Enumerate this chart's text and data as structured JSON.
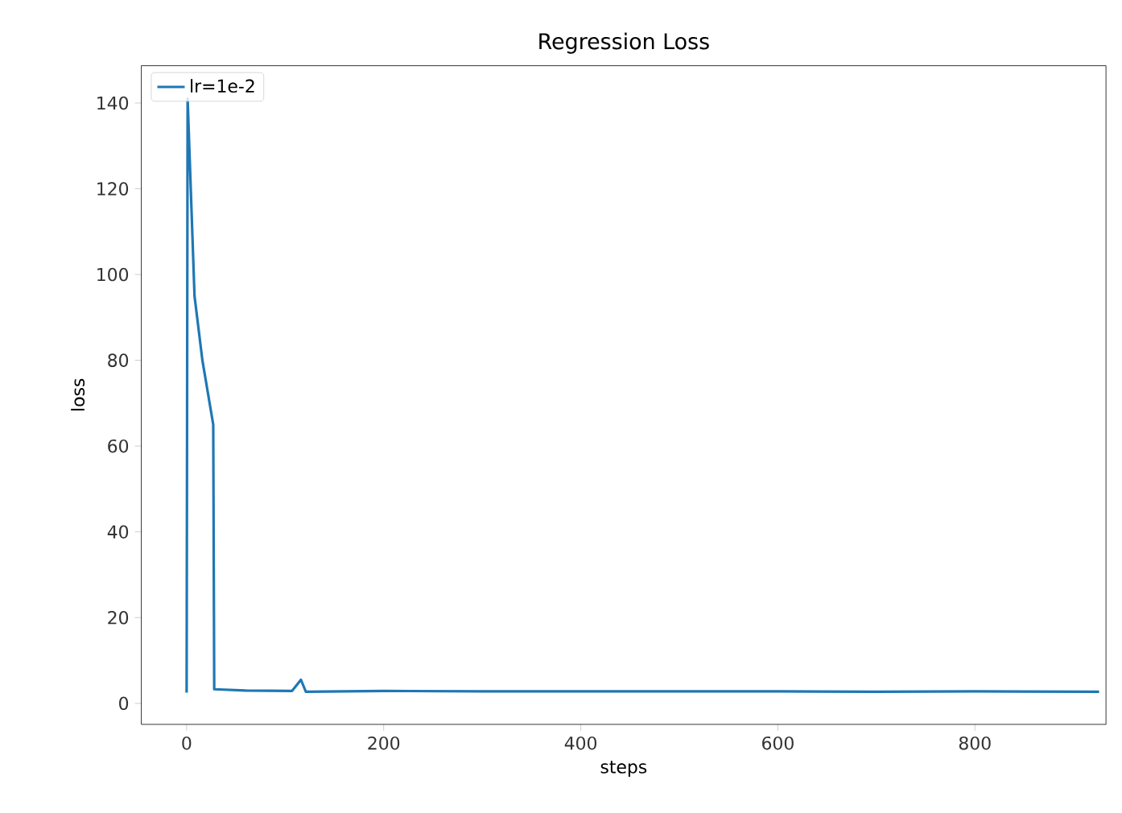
{
  "chart_data": {
    "type": "line",
    "title": "Regression Loss",
    "xlabel": "steps",
    "ylabel": "loss",
    "x": [
      0,
      1,
      8,
      16,
      27,
      28,
      60,
      107,
      116,
      121,
      200,
      300,
      400,
      500,
      600,
      700,
      800,
      926
    ],
    "series": [
      {
        "name": "lr=1e-2",
        "color": "#1f77b4",
        "values": [
          2.5,
          141,
          95,
          80,
          65,
          3.3,
          3.0,
          2.9,
          5.5,
          2.7,
          2.9,
          2.8,
          2.8,
          2.8,
          2.8,
          2.7,
          2.8,
          2.7
        ]
      }
    ],
    "xlim": [
      -46,
      933
    ],
    "ylim": [
      -4.9,
      148.7
    ],
    "xticks": [
      0,
      200,
      400,
      600,
      800
    ],
    "yticks": [
      0,
      20,
      40,
      60,
      80,
      100,
      120,
      140
    ],
    "legend": "top left",
    "grid": false,
    "marker": "none",
    "line_style": "solid"
  }
}
